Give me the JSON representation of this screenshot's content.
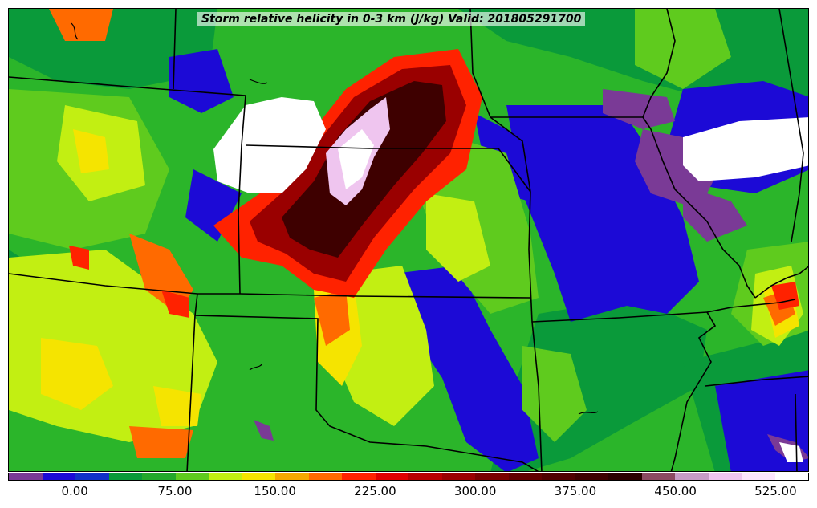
{
  "title": "Storm relative helicity in 0-3 km (J/kg) Valid: 201805291700",
  "colorbar": {
    "colors": [
      "#7a3a96",
      "#1c0ad6",
      "#1131c8",
      "#0a9a3a",
      "#23a82c",
      "#5fcb1e",
      "#c2ef12",
      "#f5e400",
      "#f5a800",
      "#ff6a00",
      "#ff2200",
      "#e00000",
      "#b80000",
      "#9a0000",
      "#7a0000",
      "#620000",
      "#500000",
      "#3e0000",
      "#2c0000",
      "#8c4a62",
      "#c79cc6",
      "#efc5ef",
      "#fde6fd",
      "#ffffff"
    ],
    "tick_labels": [
      "0.00",
      "75.00",
      "150.00",
      "225.00",
      "300.00",
      "375.00",
      "450.00",
      "525.00"
    ]
  },
  "map": {
    "background_color": "#2bb52a",
    "fields": [
      {
        "name": "purple-field",
        "color": "#7a3a96"
      },
      {
        "name": "blue-field",
        "color": "#1c0ad6"
      },
      {
        "name": "dark-green-field",
        "color": "#0a9a3a"
      },
      {
        "name": "light-green-field",
        "color": "#5fcb1e"
      },
      {
        "name": "yellow-green-field",
        "color": "#c2ef12"
      },
      {
        "name": "yellow-field",
        "color": "#f5e400"
      },
      {
        "name": "orange-field",
        "color": "#ff6a00"
      },
      {
        "name": "red-field",
        "color": "#ff2200"
      },
      {
        "name": "dark-red-field",
        "color": "#9a0000"
      },
      {
        "name": "maroon-field",
        "color": "#3e0000"
      },
      {
        "name": "pink-field",
        "color": "#efc5ef"
      },
      {
        "name": "white-field",
        "color": "#ffffff"
      }
    ]
  }
}
